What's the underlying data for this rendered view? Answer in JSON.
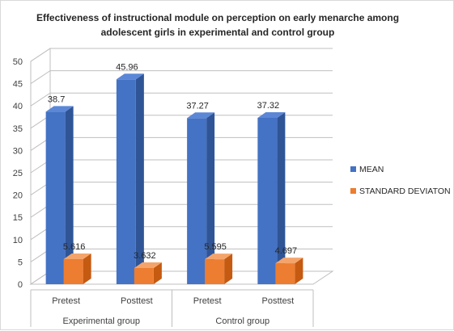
{
  "chart_data": {
    "type": "bar",
    "title_lines": [
      "Effectiveness of instructional module on perception on early menarche among",
      "adolescent girls in experimental and control group"
    ],
    "categories": [
      "Pretest",
      "Posttest",
      "Pretest",
      "Posttest"
    ],
    "groups": [
      {
        "label": "Experimental group",
        "categories": [
          "Pretest",
          "Posttest"
        ]
      },
      {
        "label": "Control group",
        "categories": [
          "Pretest",
          "Posttest"
        ]
      }
    ],
    "series": [
      {
        "name": "MEAN",
        "values": [
          38.7,
          45.96,
          37.27,
          37.32
        ],
        "labels": [
          "38.7",
          "45.96",
          "37.27",
          "37.32"
        ],
        "color": "#4472C4",
        "side": "#2F5597",
        "top": "#5B87D6"
      },
      {
        "name": "STANDARD DEVIATON",
        "values": [
          5.616,
          3.632,
          5.595,
          4.697
        ],
        "labels": [
          "5.616",
          "3.632",
          "5.595",
          "4.697"
        ],
        "color": "#ED7D31",
        "side": "#C55A11",
        "top": "#F4A46B"
      }
    ],
    "ylim": [
      0,
      50
    ],
    "yticks": [
      0,
      5,
      10,
      15,
      20,
      25,
      30,
      35,
      40,
      45,
      50
    ],
    "grid": true,
    "legend_position": "right",
    "three_d": true
  }
}
